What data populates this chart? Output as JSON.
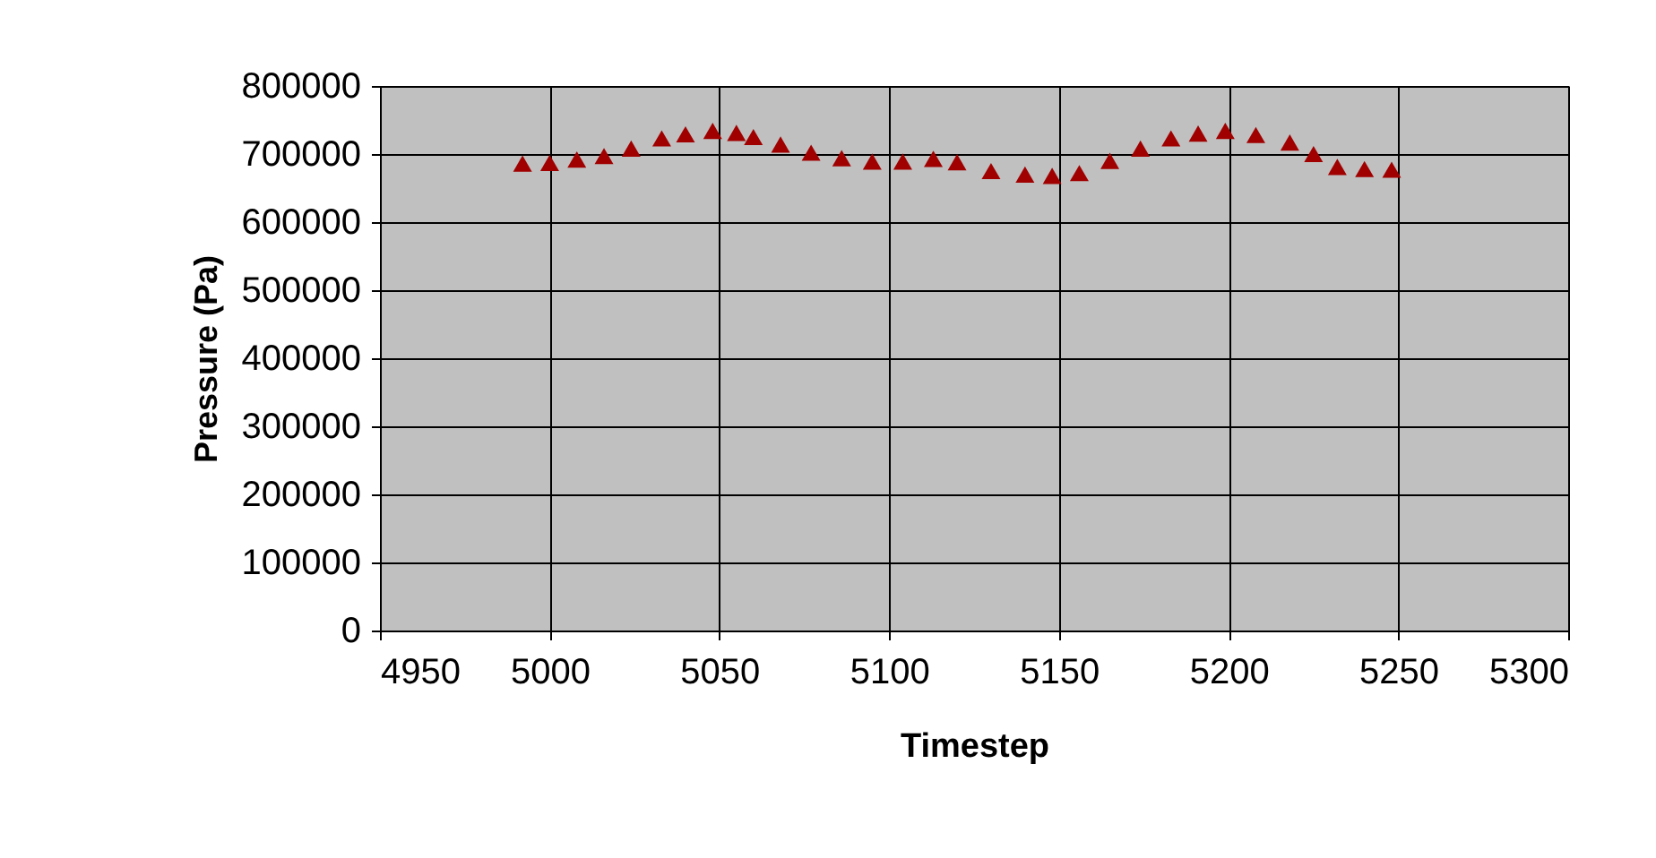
{
  "chart_data": {
    "type": "scatter",
    "xlabel": "Timestep",
    "ylabel": "Pressure (Pa)",
    "xlim": [
      4950,
      5300
    ],
    "xticks": [
      4950,
      5000,
      5050,
      5100,
      5150,
      5200,
      5250,
      5300
    ],
    "ylim": [
      0,
      800000
    ],
    "yticks": [
      0,
      100000,
      200000,
      300000,
      400000,
      500000,
      600000,
      700000,
      800000
    ],
    "grid": true,
    "marker": "triangle",
    "legend": false,
    "series": [
      {
        "color": "#a00000",
        "x": [
          4992,
          5000,
          5008,
          5016,
          5024,
          5033,
          5040,
          5048,
          5055,
          5060,
          5068,
          5077,
          5086,
          5095,
          5104,
          5113,
          5120,
          5130,
          5140,
          5148,
          5156,
          5165,
          5174,
          5183,
          5191,
          5199,
          5208,
          5218,
          5225,
          5232,
          5240,
          5248
        ],
        "values": [
          686000,
          687000,
          692000,
          697000,
          708000,
          723000,
          729000,
          734000,
          731000,
          725000,
          714000,
          702000,
          694000,
          689000,
          689000,
          693000,
          688000,
          675000,
          670000,
          668000,
          672000,
          690000,
          708000,
          723000,
          730000,
          734000,
          728000,
          717000,
          700000,
          681000,
          678000,
          677000
        ]
      }
    ]
  }
}
